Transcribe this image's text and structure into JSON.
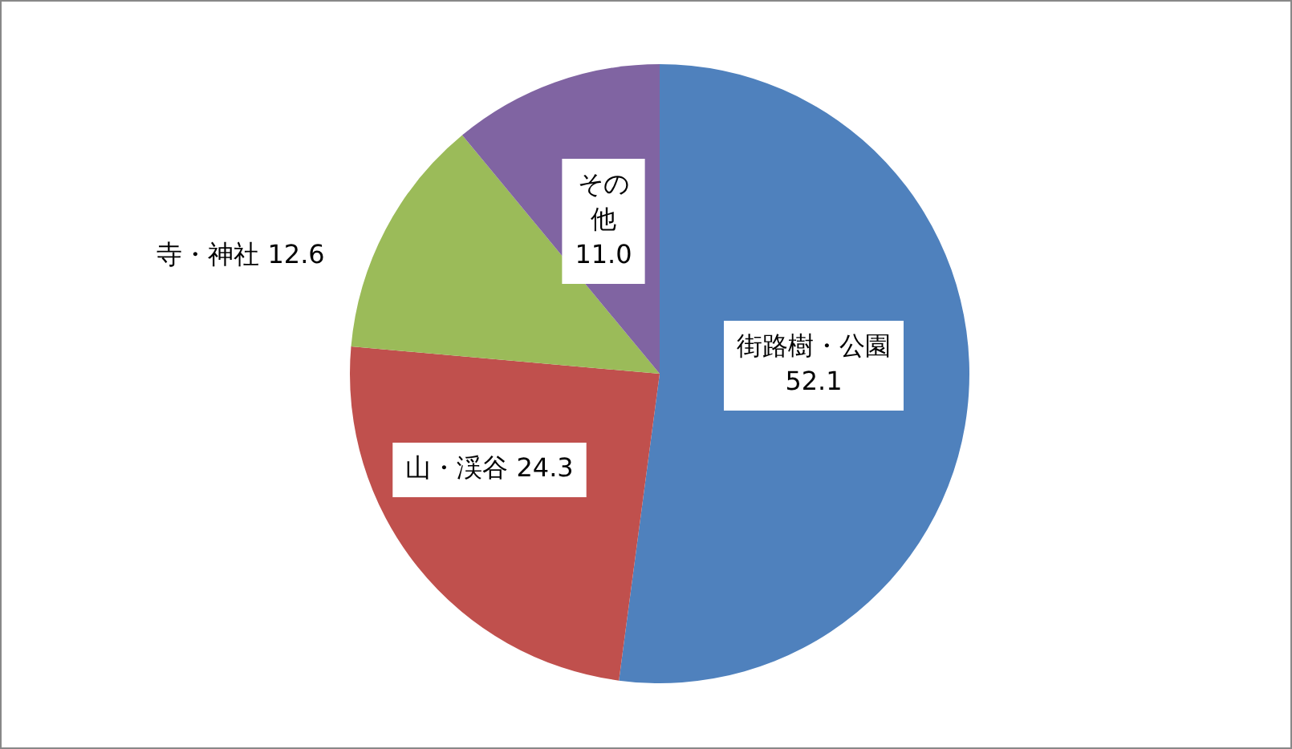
{
  "chart_data": {
    "type": "pie",
    "categories": [
      "街路樹・公園",
      "山・渓谷",
      "寺・神社",
      "その他"
    ],
    "values": [
      52.1,
      24.3,
      12.6,
      11.0
    ],
    "colors": [
      "#4f81bd",
      "#c0504d",
      "#9bbb59",
      "#8064a2"
    ],
    "value_labels": [
      "52.1",
      "24.3",
      "12.6",
      "11.0"
    ],
    "legend": false
  }
}
